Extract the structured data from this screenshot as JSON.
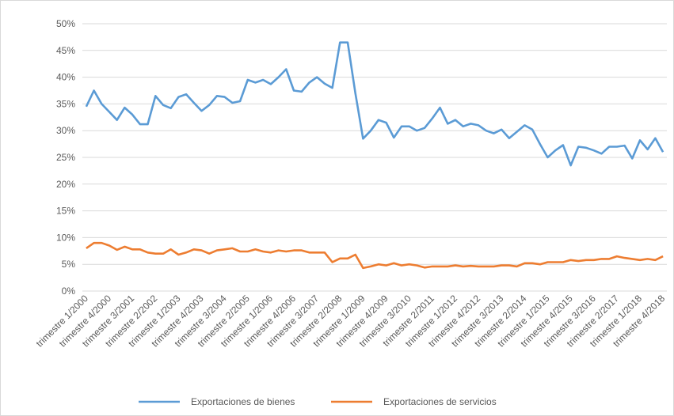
{
  "chart_data": {
    "type": "line",
    "categories": [
      "trimestre 1/2000",
      null,
      null,
      "trimestre 4/2000",
      null,
      null,
      "trimestre 3/2001",
      null,
      null,
      "trimestre 2/2002",
      null,
      null,
      "trimestre 1/2003",
      null,
      null,
      "trimestre 4/2003",
      null,
      null,
      "trimestre 3/2004",
      null,
      null,
      "trimestre 2/2005",
      null,
      null,
      "trimestre 1/2006",
      null,
      null,
      "trimestre 4/2006",
      null,
      null,
      "trimestre 3/2007",
      null,
      null,
      "trimestre 2/2008",
      null,
      null,
      "trimestre 1/2009",
      null,
      null,
      "trimestre 4/2009",
      null,
      null,
      "trimestre 3/2010",
      null,
      null,
      "trimestre 2/2011",
      null,
      null,
      "trimestre 1/2012",
      null,
      null,
      "trimestre 4/2012",
      null,
      null,
      "trimestre 3/2013",
      null,
      null,
      "trimestre 2/2014",
      null,
      null,
      "trimestre 1/2015",
      null,
      null,
      "trimestre 4/2015",
      null,
      null,
      "trimestre 3/2016",
      null,
      null,
      "trimestre 2/2017",
      null,
      null,
      "trimestre 1/2018",
      null,
      null,
      "trimestre 4/2018"
    ],
    "series": [
      {
        "name": "Exportaciones de bienes",
        "color": "#5b9bd5",
        "values": [
          34.5,
          37.5,
          35,
          33.5,
          32,
          34.3,
          33,
          31.2,
          31.2,
          36.5,
          34.8,
          34.2,
          36.3,
          36.8,
          35.2,
          33.7,
          34.8,
          36.5,
          36.3,
          35.2,
          35.5,
          39.5,
          39,
          39.5,
          38.7,
          40,
          41.5,
          37.5,
          37.3,
          39,
          40,
          38.8,
          38,
          46.5,
          46.5,
          37,
          28.5,
          30,
          32,
          31.5,
          28.7,
          30.8,
          30.8,
          30,
          30.5,
          32.3,
          34.3,
          31.3,
          32,
          30.8,
          31.3,
          31,
          30,
          29.5,
          30.2,
          28.6,
          29.8,
          31,
          30.2,
          27.5,
          25,
          26.3,
          27.3,
          23.5,
          27,
          26.8,
          26.3,
          25.7,
          27,
          27,
          27.2,
          24.8,
          28.2,
          26.5,
          28.6,
          26
        ]
      },
      {
        "name": "Exportaciones de servicios",
        "color": "#ed7d31",
        "values": [
          8,
          9,
          9,
          8.5,
          7.7,
          8.3,
          7.8,
          7.8,
          7.2,
          7,
          7,
          7.8,
          6.8,
          7.2,
          7.8,
          7.6,
          7,
          7.6,
          7.8,
          8,
          7.4,
          7.4,
          7.8,
          7.4,
          7.2,
          7.6,
          7.4,
          7.6,
          7.6,
          7.2,
          7.2,
          7.2,
          5.4,
          6.1,
          6.1,
          6.8,
          4.3,
          4.6,
          5,
          4.8,
          5.2,
          4.8,
          5,
          4.8,
          4.4,
          4.6,
          4.6,
          4.6,
          4.8,
          4.6,
          4.7,
          4.6,
          4.6,
          4.6,
          4.8,
          4.8,
          4.6,
          5.2,
          5.2,
          5,
          5.4,
          5.4,
          5.4,
          5.8,
          5.6,
          5.8,
          5.8,
          6,
          6,
          6.5,
          6.2,
          6,
          5.8,
          6,
          5.8,
          6.5
        ]
      }
    ],
    "ylim": [
      0,
      50
    ],
    "yticks": [
      {
        "value": 0,
        "label": "0%"
      },
      {
        "value": 5,
        "label": "5%"
      },
      {
        "value": 10,
        "label": "10%"
      },
      {
        "value": 15,
        "label": "15%"
      },
      {
        "value": 20,
        "label": "20%"
      },
      {
        "value": 25,
        "label": "25%"
      },
      {
        "value": 30,
        "label": "30%"
      },
      {
        "value": 35,
        "label": "35%"
      },
      {
        "value": 40,
        "label": "40%"
      },
      {
        "value": 45,
        "label": "45%"
      },
      {
        "value": 50,
        "label": "50%"
      }
    ],
    "grid": true,
    "legend": "bottom"
  }
}
